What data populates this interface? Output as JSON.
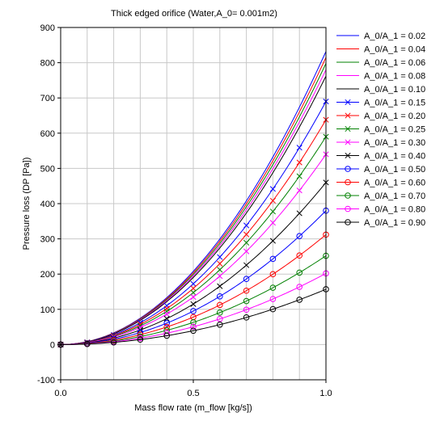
{
  "chart_data": {
    "type": "line",
    "title": "Thick edged orifice (Water,A_0= 0.001m2)",
    "xlabel": "Mass flow rate (m_flow [kg/s])",
    "ylabel": "Pressure loss (DP [Pa])",
    "xlim": [
      0.0,
      1.0
    ],
    "ylim": [
      -100,
      900
    ],
    "xticks": [
      "0.0",
      "0.5",
      "1.0"
    ],
    "yticks": [
      "-100",
      "0",
      "100",
      "200",
      "300",
      "400",
      "500",
      "600",
      "700",
      "800",
      "900"
    ],
    "grid": true,
    "legend_position": "right",
    "model": "quadratic",
    "x": [
      0.0,
      0.1,
      0.2,
      0.3,
      0.4,
      0.5,
      0.6,
      0.7,
      0.8,
      0.9,
      1.0
    ],
    "series": [
      {
        "name": "A_0/A_1 = 0.02",
        "color": "#0000ff",
        "marker": "none",
        "dp_at_1": 832
      },
      {
        "name": "A_0/A_1 = 0.04",
        "color": "#ff0000",
        "marker": "none",
        "dp_at_1": 815
      },
      {
        "name": "A_0/A_1 = 0.06",
        "color": "#008000",
        "marker": "none",
        "dp_at_1": 798
      },
      {
        "name": "A_0/A_1 = 0.08",
        "color": "#ff00ff",
        "marker": "none",
        "dp_at_1": 780
      },
      {
        "name": "A_0/A_1 = 0.10",
        "color": "#000000",
        "marker": "none",
        "dp_at_1": 762
      },
      {
        "name": "A_0/A_1 = 0.15",
        "color": "#0000ff",
        "marker": "x",
        "dp_at_1": 690
      },
      {
        "name": "A_0/A_1 = 0.20",
        "color": "#ff0000",
        "marker": "x",
        "dp_at_1": 638
      },
      {
        "name": "A_0/A_1 = 0.25",
        "color": "#008000",
        "marker": "x",
        "dp_at_1": 590
      },
      {
        "name": "A_0/A_1 = 0.30",
        "color": "#ff00ff",
        "marker": "x",
        "dp_at_1": 540
      },
      {
        "name": "A_0/A_1 = 0.40",
        "color": "#000000",
        "marker": "x",
        "dp_at_1": 460
      },
      {
        "name": "A_0/A_1 = 0.50",
        "color": "#0000ff",
        "marker": "o",
        "dp_at_1": 380
      },
      {
        "name": "A_0/A_1 = 0.60",
        "color": "#ff0000",
        "marker": "o",
        "dp_at_1": 312
      },
      {
        "name": "A_0/A_1 = 0.70",
        "color": "#008000",
        "marker": "o",
        "dp_at_1": 252
      },
      {
        "name": "A_0/A_1 = 0.80",
        "color": "#ff00ff",
        "marker": "o",
        "dp_at_1": 202
      },
      {
        "name": "A_0/A_1 = 0.90",
        "color": "#000000",
        "marker": "o",
        "dp_at_1": 157
      }
    ]
  }
}
